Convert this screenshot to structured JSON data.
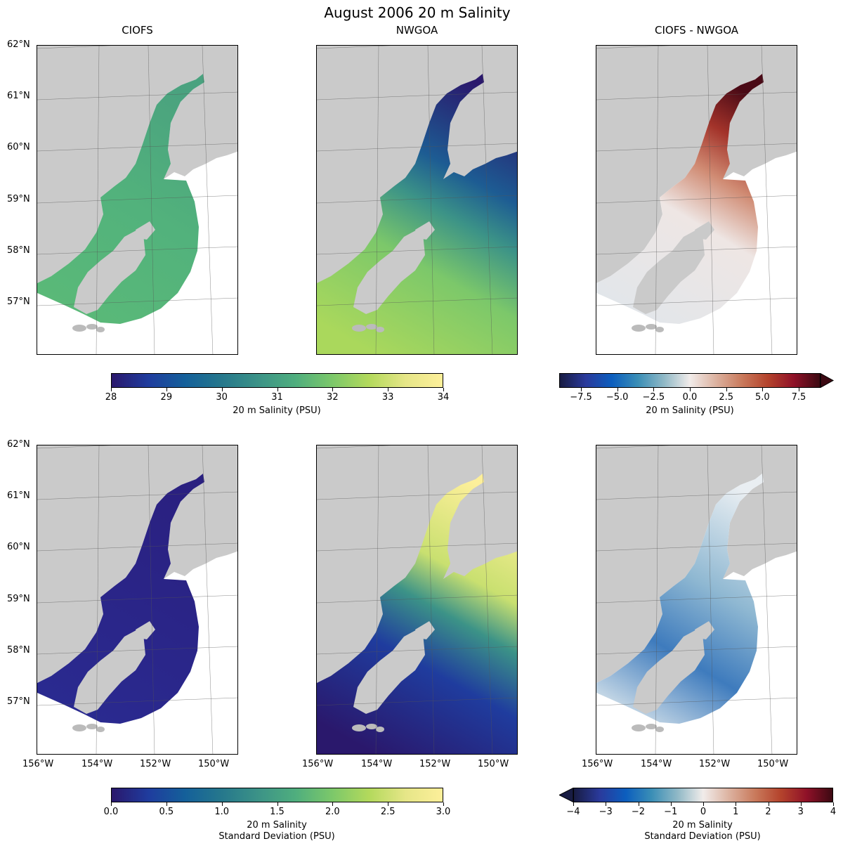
{
  "title": "August 2006 20 m Salinity",
  "panels": [
    {
      "title": "CIOFS",
      "field": "mean",
      "model": "CIOFS"
    },
    {
      "title": "NWGOA",
      "field": "mean",
      "model": "NWGOA"
    },
    {
      "title": "CIOFS - NWGOA",
      "field": "mean",
      "model": "diff"
    },
    {
      "title": "",
      "field": "std",
      "model": "CIOFS"
    },
    {
      "title": "",
      "field": "std",
      "model": "NWGOA"
    },
    {
      "title": "",
      "field": "std",
      "model": "diff"
    }
  ],
  "lat_labels": [
    "62°N",
    "61°N",
    "60°N",
    "59°N",
    "58°N",
    "57°N"
  ],
  "lon_labels": [
    "156°W",
    "154°W",
    "152°W",
    "150°W"
  ],
  "colors": {
    "land": "#cacaca",
    "unmodeled_water": "#ffffff",
    "gridline": "#555555"
  },
  "colorbars": [
    {
      "label": "20 m Salinity (PSU)",
      "label2": "",
      "range": [
        28,
        34
      ],
      "extend": "neither",
      "ticks": [
        "28",
        "29",
        "30",
        "31",
        "32",
        "33",
        "34"
      ],
      "tick_values": [
        28,
        29,
        30,
        31,
        32,
        33,
        34
      ],
      "colormap": "haline",
      "colors": [
        "#2a186c",
        "#1f3c9e",
        "#14609a",
        "#26788c",
        "#3c9387",
        "#4fae7e",
        "#7cc86a",
        "#b3d95c",
        "#e6e688",
        "#fdef9a"
      ]
    },
    {
      "label": "20 m Salinity (PSU)",
      "label2": "",
      "range": [
        -9,
        9
      ],
      "extend": "max",
      "ticks": [
        "−7.5",
        "−5.0",
        "−2.5",
        "0.0",
        "2.5",
        "5.0",
        "7.5"
      ],
      "tick_values": [
        -7.5,
        -5,
        -2.5,
        0,
        2.5,
        5,
        7.5
      ],
      "colormap": "balance",
      "colors": [
        "#181c43",
        "#2a3a9c",
        "#0c5ebe",
        "#3a8eb6",
        "#8fb8c6",
        "#f1ecea",
        "#dcb2a0",
        "#c97a5c",
        "#b4432c",
        "#8f1128",
        "#3c0912"
      ]
    },
    {
      "label": "20 m Salinity",
      "label2": "Standard Deviation (PSU)",
      "range": [
        0,
        3
      ],
      "extend": "neither",
      "ticks": [
        "0.0",
        "0.5",
        "1.0",
        "1.5",
        "2.0",
        "2.5",
        "3.0"
      ],
      "tick_values": [
        0,
        0.5,
        1,
        1.5,
        2,
        2.5,
        3
      ],
      "colormap": "haline",
      "colors": [
        "#2a186c",
        "#1f3c9e",
        "#14609a",
        "#26788c",
        "#3c9387",
        "#4fae7e",
        "#7cc86a",
        "#b3d95c",
        "#e6e688",
        "#fdef9a"
      ]
    },
    {
      "label": "20 m Salinity",
      "label2": "Standard Deviation (PSU)",
      "range": [
        -4,
        4
      ],
      "extend": "min",
      "ticks": [
        "−4",
        "−3",
        "−2",
        "−1",
        "0",
        "1",
        "2",
        "3",
        "4"
      ],
      "tick_values": [
        -4,
        -3,
        -2,
        -1,
        0,
        1,
        2,
        3,
        4
      ],
      "colormap": "balance",
      "colors": [
        "#181c43",
        "#2a3a9c",
        "#0c5ebe",
        "#3a8eb6",
        "#8fb8c6",
        "#f1ecea",
        "#dcb2a0",
        "#c97a5c",
        "#b4432c",
        "#8f1128",
        "#3c0912"
      ]
    }
  ]
}
